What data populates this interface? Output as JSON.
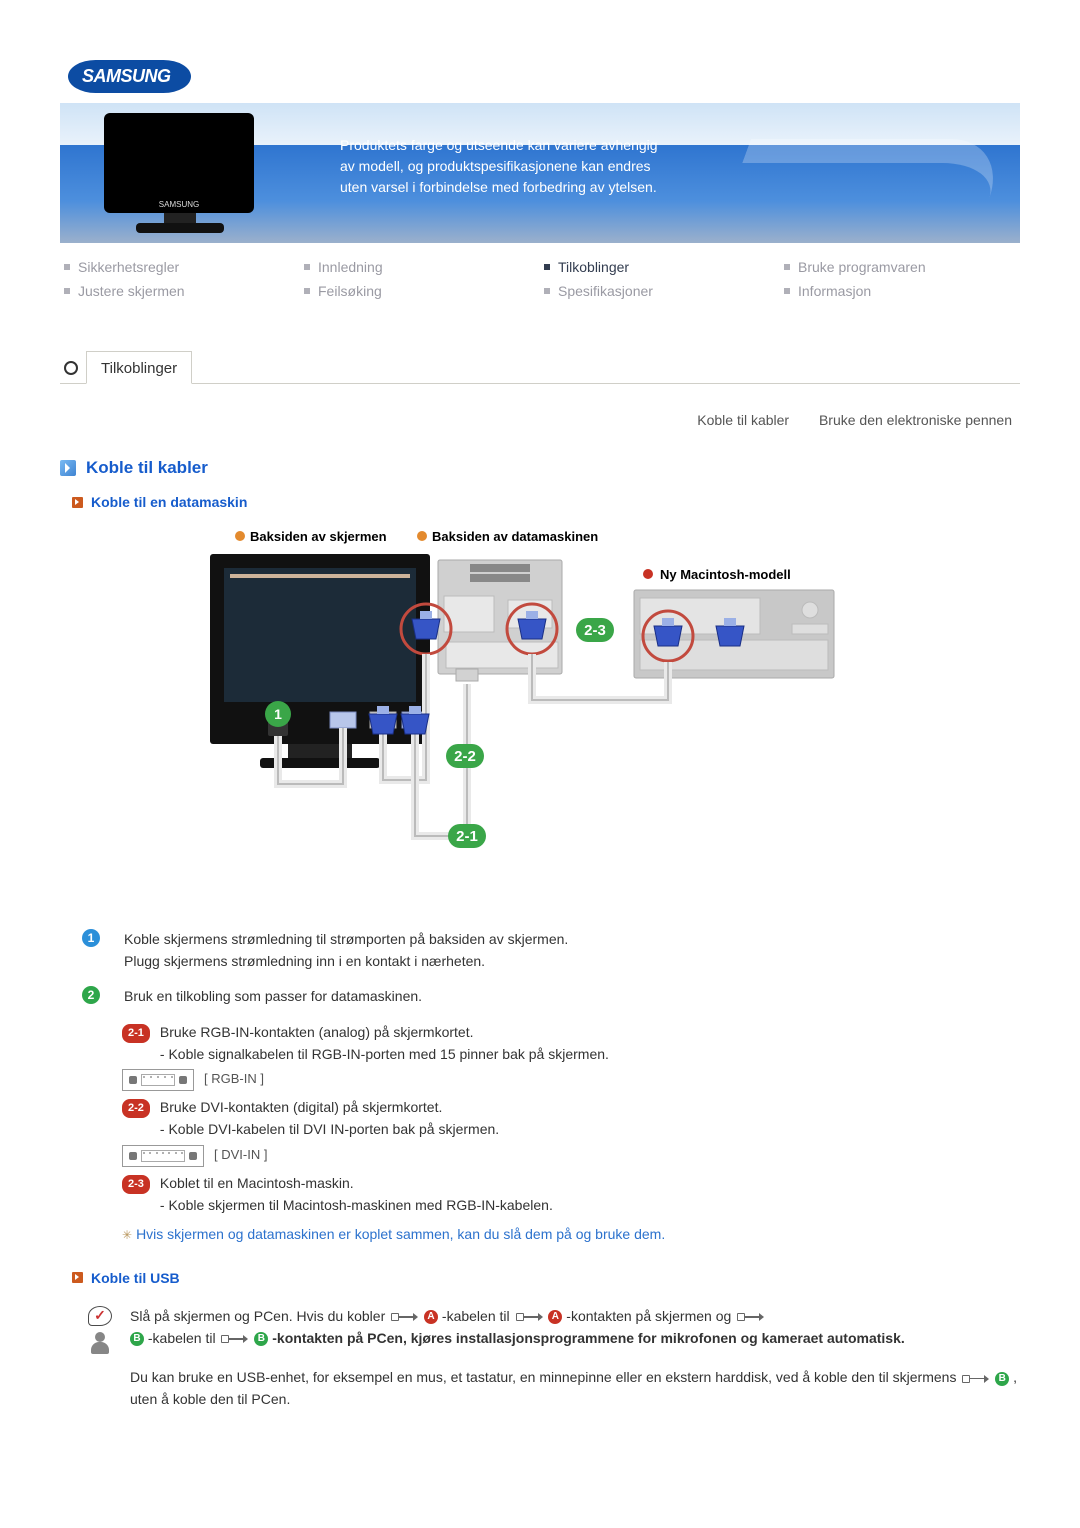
{
  "logo": {
    "text": "SAMSUNG"
  },
  "banner": {
    "text_lines": [
      "Produktets farge og utseende kan variere avhengig",
      "av modell, og produktspesifikasjonene kan endres",
      "uten varsel i forbindelse med forbedring av ytelsen."
    ],
    "monitor_brand": "SAMSUNG"
  },
  "nav": {
    "col1": {
      "a": "Sikkerhetsregler",
      "b": "Justere skjermen"
    },
    "col2": {
      "a": "Innledning",
      "b": "Feilsøking"
    },
    "col3": {
      "a": "Tilkoblinger",
      "b": "Spesifikasjoner"
    },
    "col4": {
      "a": "Bruke programvaren",
      "b": "Informasjon"
    }
  },
  "tab": {
    "label": "Tilkoblinger"
  },
  "sublinks": {
    "a": "Koble til kabler",
    "b": "Bruke den elektroniske pennen"
  },
  "section1": {
    "title": "Koble til kabler",
    "subtitle": "Koble til en datamaskin"
  },
  "diagram": {
    "label_screen": "Baksiden av skjermen",
    "label_pc": "Baksiden av datamaskinen",
    "label_mac": "Ny Macintosh-modell",
    "b1": "1",
    "b21": "2-1",
    "b22": "2-2",
    "b23": "2-3",
    "colors": {
      "badge": "#3aa648",
      "circle": "#c24a3e",
      "connector": "#3655c6",
      "cable": "#e9e9e9",
      "screen_body": "#111",
      "pc_body": "#d0d0d0",
      "mac_body": "#c8c8c8",
      "line": "#bdbdbd",
      "dash": "#cdb39a",
      "dot_o": "#e38a2e",
      "dot_r": "#c83224"
    }
  },
  "instructions": {
    "s1a": "Koble skjermens strømledning til strømporten på baksiden av skjermen.",
    "s1b": "Plugg skjermens strømledning inn i en kontakt i nærheten.",
    "s2": "Bruk en tilkobling som passer for datamaskinen.",
    "p21": "2-1",
    "p21a": "Bruke RGB-IN-kontakten (analog) på skjermkortet.",
    "p21b": "- Koble signalkabelen til RGB-IN-porten med 15 pinner bak på skjermen.",
    "rgb_label": "[ RGB-IN ]",
    "p22": "2-2",
    "p22a": "Bruke DVI-kontakten (digital) på skjermkortet.",
    "p22b": "- Koble DVI-kabelen til DVI IN-porten bak på skjermen.",
    "dvi_label": "[ DVI-IN ]",
    "p23": "2-3",
    "p23a": "Koblet til en Macintosh-maskin.",
    "p23b": "- Koble skjermen til Macintosh-maskinen med RGB-IN-kabelen.",
    "tip": "Hvis skjermen og datamaskinen er koplet sammen, kan du slå dem på og bruke dem."
  },
  "usb": {
    "title": "Koble til USB",
    "p1_a": "Slå på skjermen og PCen. Hvis du kobler ",
    "p1_b": "-kabelen til ",
    "p1_c": "-kontakten på skjermen og ",
    "p1_d": "-kabelen til ",
    "p1_e": "-kontakten på",
    "p1_bold": " PCen, kjøres installasjonsprogrammene for mikrofonen og kameraet automatisk.",
    "p2_a": "Du kan bruke en USB-enhet, for eksempel en mus, et tastatur, en minnepinne eller en ekstern harddisk, ved å koble den til skjermens ",
    "p2_b": " , uten å koble den til PCen.",
    "ab_a": "A",
    "ab_b": "B"
  }
}
